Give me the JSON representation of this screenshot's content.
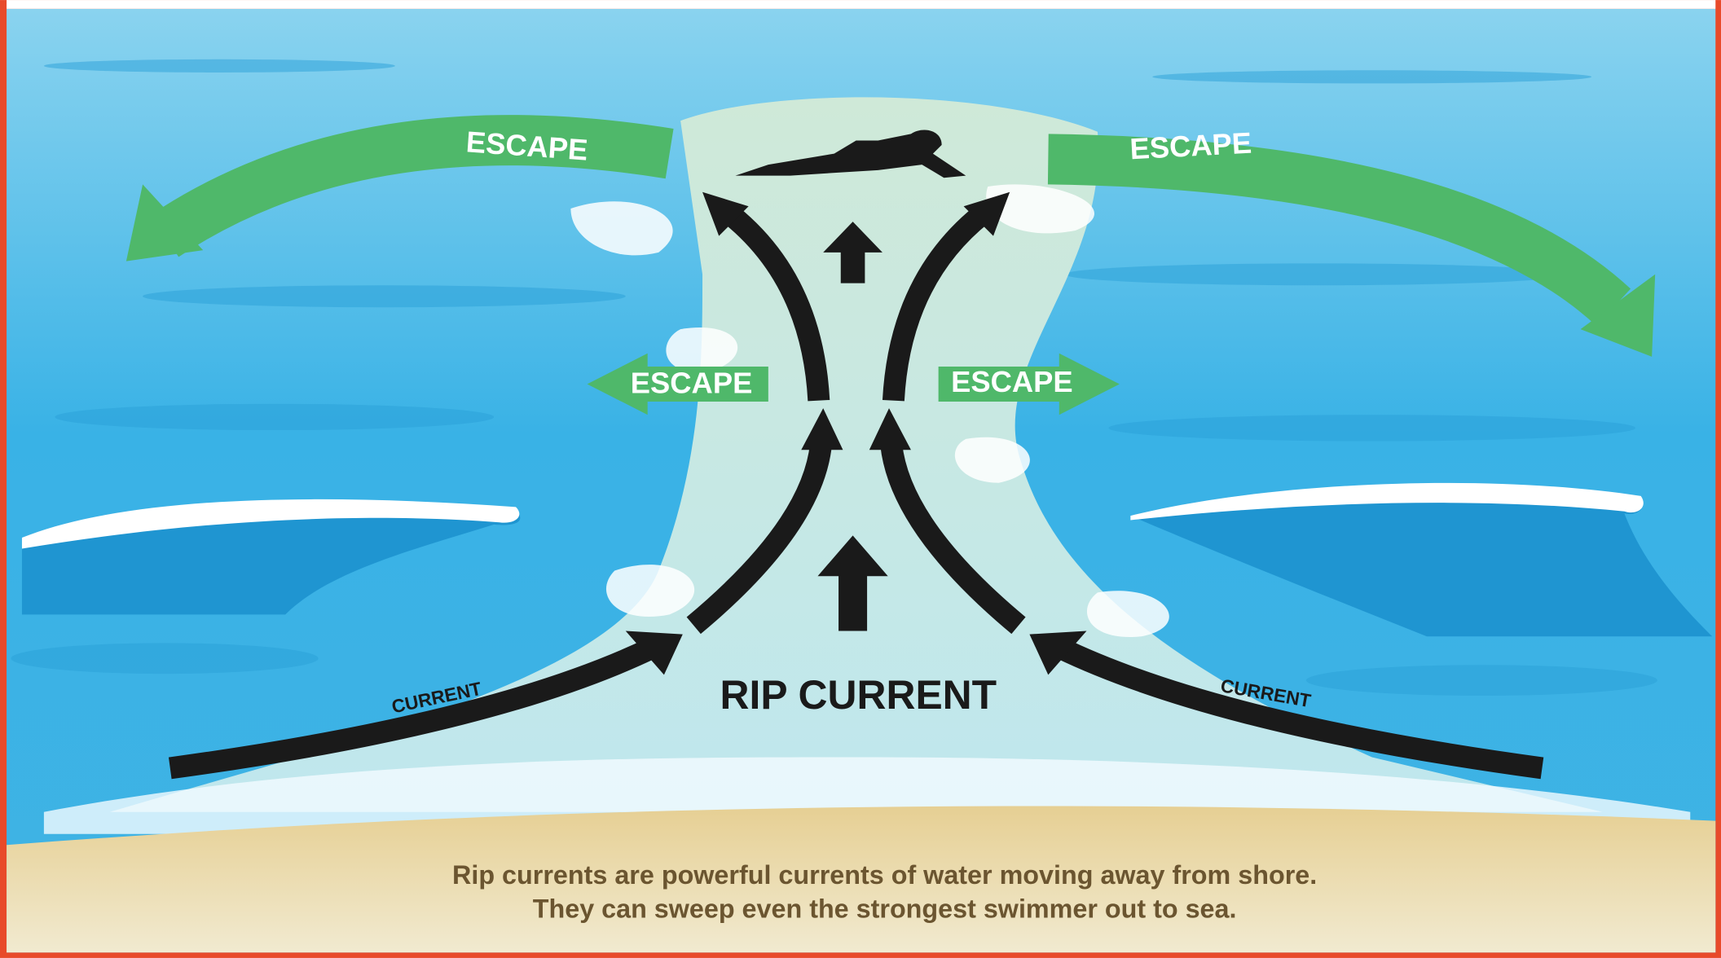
{
  "escape_arrows": [
    {
      "label": "ESCAPE"
    },
    {
      "label": "ESCAPE"
    },
    {
      "label": "ESCAPE"
    },
    {
      "label": "ESCAPE"
    }
  ],
  "current_arrows": [
    {
      "label": "CURRENT"
    },
    {
      "label": "CURRENT"
    }
  ],
  "rip_current_label": "RIP CURRENT",
  "caption": [
    "Rip currents are powerful currents of water moving away from shore.",
    "They can sweep even the strongest swimmer out to sea."
  ]
}
